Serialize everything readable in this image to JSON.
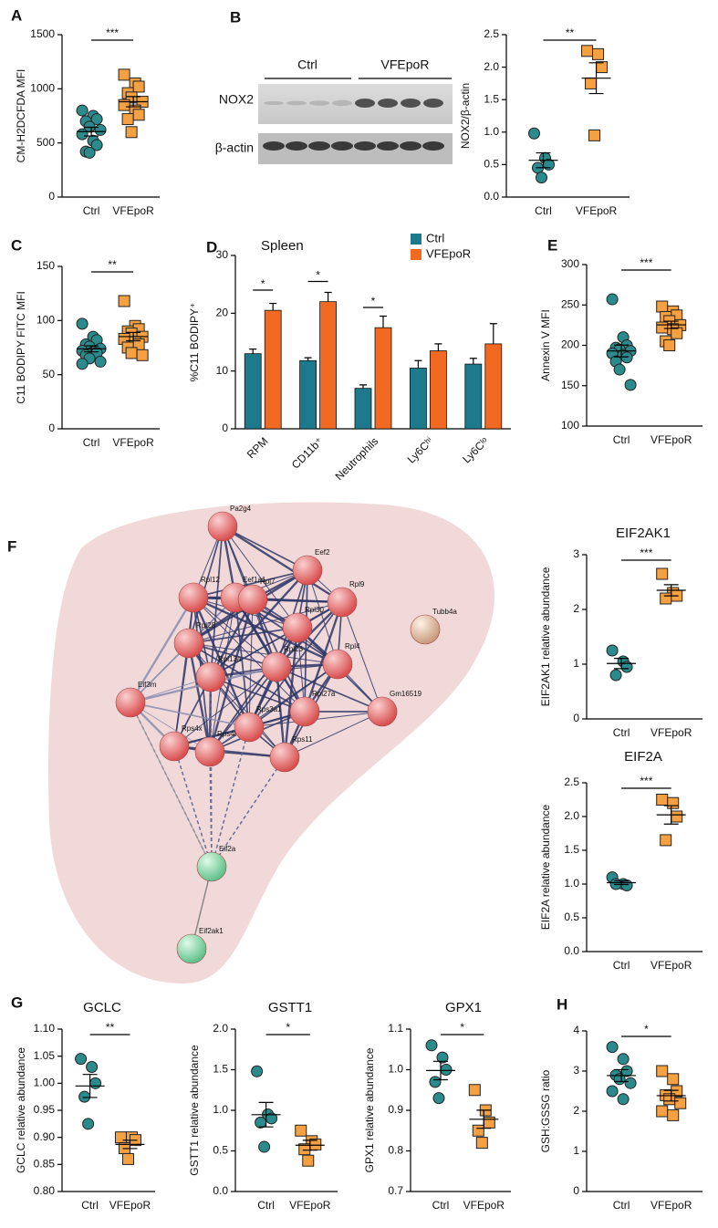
{
  "chart_data": [
    {
      "type": "dot",
      "panel": "A",
      "ylabel": "CM-H2DCFDA MFI",
      "ylim": [
        0,
        1500
      ],
      "yticks": [
        0,
        500,
        1000,
        1500
      ],
      "significance": "***",
      "series": [
        {
          "name": "Ctrl",
          "color": "#2b8a8c",
          "marker": "circle",
          "values": [
            800,
            750,
            720,
            700,
            650,
            620,
            580,
            520,
            480,
            420,
            410
          ]
        },
        {
          "name": "VFEpoR",
          "color": "#f5a142",
          "marker": "square",
          "values": [
            1130,
            1050,
            1020,
            960,
            920,
            880,
            850,
            800,
            760,
            720,
            600
          ]
        }
      ]
    },
    {
      "type": "dot",
      "ylabel": "NOX2/β-actin",
      "ylim": [
        0,
        2.5
      ],
      "yticks": [
        {
          "value": 0,
          "label": "0.0"
        },
        0.5,
        {
          "value": 1,
          "label": "1.0"
        },
        1.5,
        {
          "value": 2,
          "label": "2.0"
        },
        2.5
      ],
      "significance": "**",
      "series": [
        {
          "name": "Ctrl",
          "color": "#2b8a8c",
          "marker": "circle",
          "values": [
            0.98,
            0.6,
            0.5,
            0.45,
            0.3
          ]
        },
        {
          "name": "VFEpoR",
          "color": "#f5a142",
          "marker": "square",
          "values": [
            2.25,
            2.2,
            2.0,
            1.75,
            0.95
          ]
        }
      ]
    },
    {
      "type": "dot",
      "panel": "C",
      "ylabel": "C11 BODIPY FITC MFI",
      "ylim": [
        0,
        150
      ],
      "yticks": [
        0,
        50,
        100,
        150
      ],
      "significance": "**",
      "series": [
        {
          "name": "Ctrl",
          "color": "#2b8a8c",
          "marker": "circle",
          "values": [
            97,
            85,
            82,
            78,
            76,
            74,
            72,
            71,
            70,
            68,
            65,
            62,
            60
          ]
        },
        {
          "name": "VFEpoR",
          "color": "#f5a142",
          "marker": "square",
          "values": [
            118,
            95,
            92,
            90,
            88,
            85,
            83,
            80,
            78,
            75,
            70,
            68
          ]
        }
      ]
    },
    {
      "type": "bar",
      "panel": "D",
      "title": "Spleen",
      "ylabel": "%C11 BODIPY⁺",
      "ylim": [
        0,
        30
      ],
      "yticks": [
        0,
        10,
        20,
        30
      ],
      "categories": [
        "RPM",
        "CD11b⁺",
        "Neutrophils",
        "Ly6Cʰⁱ",
        "Ly6Cˡᵒ"
      ],
      "significance": [
        "*",
        "*",
        "*",
        null,
        null
      ],
      "series": [
        {
          "name": "Ctrl",
          "color": "#1c7a8c",
          "values": [
            13,
            11.8,
            7,
            10.5,
            11.2
          ],
          "errors": [
            0.8,
            0.5,
            0.6,
            1.3,
            1.0
          ]
        },
        {
          "name": "VFEpoR",
          "color": "#f26a21",
          "values": [
            20.5,
            22,
            17.5,
            13.5,
            14.7
          ],
          "errors": [
            1.2,
            1.6,
            2.0,
            1.2,
            3.5
          ]
        }
      ]
    },
    {
      "type": "dot",
      "panel": "E",
      "ylabel": "Annexin V MFI",
      "ylim": [
        100,
        300
      ],
      "yticks": [
        100,
        150,
        200,
        250,
        300
      ],
      "significance": "***",
      "series": [
        {
          "name": "Ctrl",
          "color": "#2b8a8c",
          "marker": "circle",
          "values": [
            257,
            210,
            200,
            197,
            195,
            193,
            190,
            188,
            185,
            180,
            170,
            151
          ]
        },
        {
          "name": "VFEpoR",
          "color": "#f5a142",
          "marker": "square",
          "values": [
            248,
            242,
            237,
            235,
            230,
            225,
            222,
            220,
            215,
            205,
            200
          ]
        }
      ]
    },
    {
      "type": "dot",
      "title": "EIF2AK1",
      "ylabel": "EIF2AK1 relative abundance",
      "ylim": [
        0,
        3
      ],
      "yticks": [
        0,
        1,
        2,
        3
      ],
      "significance": "***",
      "series": [
        {
          "name": "Ctrl",
          "color": "#2b8a8c",
          "marker": "circle",
          "values": [
            1.25,
            1.05,
            0.95,
            0.8
          ]
        },
        {
          "name": "VFEpoR",
          "color": "#f5a142",
          "marker": "square",
          "values": [
            2.65,
            2.3,
            2.25,
            2.2
          ]
        }
      ]
    },
    {
      "type": "dot",
      "title": "EIF2A",
      "ylabel": "EIF2A  relative abundance",
      "ylim": [
        0,
        2.5
      ],
      "yticks": [
        {
          "value": 0,
          "label": "0.0"
        },
        0.5,
        {
          "value": 1,
          "label": "1.0"
        },
        1.5,
        {
          "value": 2,
          "label": "2.0"
        },
        2.5
      ],
      "significance": "***",
      "series": [
        {
          "name": "Ctrl",
          "color": "#2b8a8c",
          "marker": "circle",
          "values": [
            1.1,
            1.0,
            0.98,
            1.0
          ]
        },
        {
          "name": "VFEpoR",
          "color": "#f5a142",
          "marker": "square",
          "values": [
            2.25,
            2.2,
            2.0,
            1.65
          ]
        }
      ]
    },
    {
      "type": "dot",
      "panel": "G",
      "title": "GCLC",
      "ylabel": "GCLC  relative abundance",
      "ylim": [
        0.8,
        1.1
      ],
      "yticks": [
        {
          "value": 0.8,
          "label": "0.80"
        },
        0.85,
        {
          "value": 0.9,
          "label": "0.90"
        },
        0.95,
        {
          "value": 1,
          "label": "1.00"
        },
        1.05,
        {
          "value": 1.1,
          "label": "1.10"
        }
      ],
      "significance": "**",
      "series": [
        {
          "name": "Ctrl",
          "color": "#2b8a8c",
          "marker": "circle",
          "values": [
            1.045,
            1.03,
            1.0,
            0.975,
            0.925
          ]
        },
        {
          "name": "VFEpoR",
          "color": "#f5a142",
          "marker": "square",
          "values": [
            0.9,
            0.9,
            0.895,
            0.88,
            0.86
          ]
        }
      ]
    },
    {
      "type": "dot",
      "title": "GSTT1",
      "ylabel": "GSTT1  relative abundance",
      "ylim": [
        0,
        2
      ],
      "yticks": [
        {
          "value": 0,
          "label": "0.0"
        },
        0.5,
        {
          "value": 1,
          "label": "1.0"
        },
        1.5,
        {
          "value": 2,
          "label": "2.0"
        }
      ],
      "significance": "*",
      "series": [
        {
          "name": "Ctrl",
          "color": "#2b8a8c",
          "marker": "circle",
          "values": [
            1.48,
            0.95,
            0.9,
            0.85,
            0.55
          ]
        },
        {
          "name": "VFEpoR",
          "color": "#f5a142",
          "marker": "square",
          "values": [
            0.75,
            0.62,
            0.58,
            0.52,
            0.38
          ]
        }
      ]
    },
    {
      "type": "dot",
      "title": "GPX1",
      "ylabel": "GPX1  relative abundance",
      "ylim": [
        0.7,
        1.1
      ],
      "yticks": [
        0.7,
        0.8,
        0.9,
        {
          "value": 1,
          "label": "1.0"
        },
        1.1
      ],
      "significance": "*",
      "series": [
        {
          "name": "Ctrl",
          "color": "#2b8a8c",
          "marker": "circle",
          "values": [
            1.06,
            1.03,
            1.0,
            0.97,
            0.93
          ]
        },
        {
          "name": "VFEpoR",
          "color": "#f5a142",
          "marker": "square",
          "values": [
            0.95,
            0.9,
            0.87,
            0.85,
            0.82
          ]
        }
      ]
    },
    {
      "type": "dot",
      "panel": "H",
      "ylabel": "GSH:GSSG ratio",
      "ylim": [
        0,
        4
      ],
      "yticks": [
        0,
        1,
        2,
        3,
        4
      ],
      "significance": "*",
      "series": [
        {
          "name": "Ctrl",
          "color": "#2b8a8c",
          "marker": "circle",
          "values": [
            3.6,
            3.3,
            3.0,
            2.9,
            2.8,
            2.7,
            2.5,
            2.3
          ]
        },
        {
          "name": "VFEpoR",
          "color": "#f5a142",
          "marker": "square",
          "values": [
            3.0,
            2.8,
            2.5,
            2.4,
            2.3,
            2.2,
            2.0,
            1.9
          ]
        }
      ]
    }
  ],
  "blot": {
    "panel": "B",
    "groups": [
      "Ctrl",
      "VFEpoR"
    ],
    "rows": [
      "NOX2",
      "β-actin"
    ]
  },
  "network": {
    "panel": "F",
    "nodes": [
      "Pa2g4",
      "Eef2",
      "Eef1a1",
      "Rpl12",
      "Rpl7",
      "Rpl9",
      "Rpl30",
      "Rpl28",
      "Rpl4",
      "Rpl23",
      "Rpl13a",
      "Eif3m",
      "Rpl27a",
      "Gm16519",
      "Rps3a1",
      "Rps4x",
      "Rps4l",
      "Rps11",
      "Tubb4a",
      "Eif2a",
      "Eif2ak1"
    ]
  }
}
